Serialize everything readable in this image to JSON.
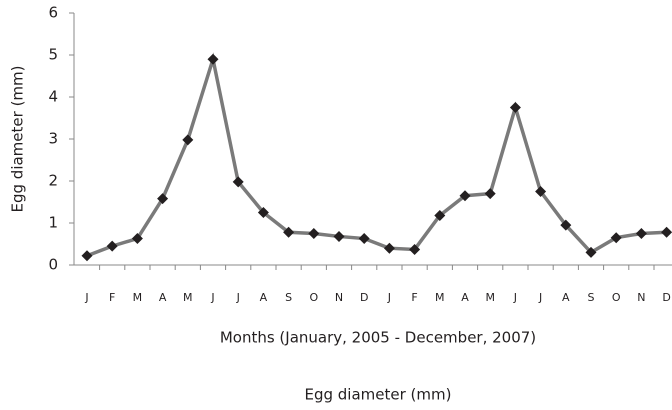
{
  "chart_data": {
    "type": "line",
    "y_label": "Egg diameter (mm)",
    "x_label": "Months (January, 2005 - December, 2007)",
    "categories": [
      "J",
      "F",
      "M",
      "A",
      "M",
      "J",
      "J",
      "A",
      "S",
      "O",
      "N",
      "D",
      "J",
      "F",
      "M",
      "A",
      "M",
      "J",
      "J",
      "A",
      "S",
      "O",
      "N",
      "D"
    ],
    "series": [
      {
        "name": "Egg diameter (mm)",
        "color": "#7a7a7a",
        "marker_color": "#231f20",
        "values": [
          0.22,
          0.45,
          0.63,
          1.58,
          2.98,
          4.9,
          1.98,
          1.25,
          0.78,
          0.75,
          0.68,
          0.63,
          0.4,
          0.37,
          1.18,
          1.65,
          1.7,
          3.75,
          1.75,
          0.95,
          0.3,
          0.65,
          0.75,
          0.78
        ]
      }
    ],
    "ylim": [
      0,
      6
    ],
    "yticks": [
      0,
      1,
      2,
      3,
      4,
      5,
      6
    ]
  }
}
